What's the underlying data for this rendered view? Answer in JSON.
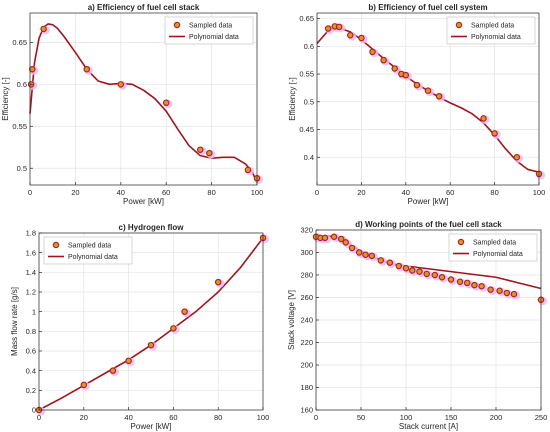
{
  "figure": {
    "background": "#ffffff"
  },
  "style": {
    "sample_marker_fill": "#d69a1f",
    "sample_marker_edge": "#b2182b",
    "sample_marker_shadow": "#f2b6f2",
    "curve_color": "#a0141e",
    "grid_color": "#e3e3e3",
    "axis_color": "#262626"
  },
  "chart_data": [
    {
      "type": "scatter",
      "title": "a) Efficiency of fuel cell stack",
      "xlabel": "Power [kW]",
      "ylabel": "Efficiency [-]",
      "xlim": [
        0,
        100
      ],
      "ylim": [
        0.48,
        0.685
      ],
      "xticks": [
        0,
        20,
        40,
        60,
        80,
        100
      ],
      "yticks": [
        0.5,
        0.55,
        0.6,
        0.65
      ],
      "grid": true,
      "legend": {
        "placement": "top-right",
        "entries": [
          "Sampled data",
          "Polynomial data"
        ]
      },
      "series": [
        {
          "name": "Sampled data",
          "kind": "markers",
          "x": [
            0.5,
            1,
            6,
            25,
            40,
            60,
            75,
            79,
            96,
            100
          ],
          "y": [
            0.6,
            0.618,
            0.666,
            0.618,
            0.6,
            0.578,
            0.522,
            0.518,
            0.498,
            0.488
          ]
        },
        {
          "name": "Polynomial data",
          "kind": "line",
          "x": [
            0,
            2,
            4,
            6,
            8,
            10,
            12,
            15,
            20,
            25,
            30,
            35,
            40,
            45,
            50,
            55,
            60,
            65,
            70,
            75,
            80,
            85,
            90,
            95,
            98,
            100
          ],
          "y": [
            0.565,
            0.626,
            0.655,
            0.668,
            0.672,
            0.671,
            0.667,
            0.657,
            0.638,
            0.618,
            0.604,
            0.6,
            0.601,
            0.6,
            0.593,
            0.583,
            0.568,
            0.547,
            0.527,
            0.515,
            0.512,
            0.513,
            0.513,
            0.505,
            0.495,
            0.483
          ]
        }
      ]
    },
    {
      "type": "scatter",
      "title": "b) Efficiency of fuel cell system",
      "xlabel": "Power [kW]",
      "ylabel": "Efficiency [-]",
      "xlim": [
        0,
        100
      ],
      "ylim": [
        0.35,
        0.66
      ],
      "xticks": [
        0,
        20,
        40,
        60,
        80,
        100
      ],
      "yticks": [
        0.4,
        0.45,
        0.5,
        0.55,
        0.6,
        0.65
      ],
      "grid": true,
      "legend": {
        "placement": "top-right",
        "entries": [
          "Sampled data",
          "Polynomial data"
        ]
      },
      "series": [
        {
          "name": "Sampled data",
          "kind": "markers",
          "x": [
            5,
            8,
            10,
            15,
            20,
            25,
            30,
            35,
            38,
            40,
            45,
            50,
            55,
            75,
            80,
            90,
            100
          ],
          "y": [
            0.632,
            0.636,
            0.635,
            0.62,
            0.615,
            0.59,
            0.575,
            0.56,
            0.55,
            0.548,
            0.53,
            0.52,
            0.51,
            0.47,
            0.443,
            0.4,
            0.37
          ]
        },
        {
          "name": "Polynomial data",
          "kind": "line",
          "x": [
            0,
            5,
            10,
            15,
            20,
            25,
            30,
            35,
            40,
            45,
            50,
            55,
            60,
            65,
            70,
            75,
            80,
            85,
            90,
            95,
            100
          ],
          "y": [
            0.605,
            0.628,
            0.633,
            0.626,
            0.612,
            0.595,
            0.578,
            0.562,
            0.546,
            0.532,
            0.52,
            0.508,
            0.498,
            0.489,
            0.478,
            0.462,
            0.44,
            0.415,
            0.393,
            0.378,
            0.373
          ]
        }
      ]
    },
    {
      "type": "scatter",
      "title": "c) Hydrogen flow",
      "xlabel": "Power [kW]",
      "ylabel": "Mass flow rate [g/s]",
      "xlim": [
        0,
        100
      ],
      "ylim": [
        0,
        1.8
      ],
      "xticks": [
        0,
        20,
        40,
        60,
        80,
        100
      ],
      "yticks": [
        0,
        0.2,
        0.4,
        0.6,
        0.8,
        1,
        1.2,
        1.4,
        1.6,
        1.8
      ],
      "grid": true,
      "legend": {
        "placement": "top-left",
        "entries": [
          "Sampled data",
          "Polynomial data"
        ]
      },
      "series": [
        {
          "name": "Sampled data",
          "kind": "markers",
          "x": [
            0,
            20,
            33,
            40,
            50,
            60,
            65,
            80,
            100
          ],
          "y": [
            0,
            0.255,
            0.4,
            0.5,
            0.66,
            0.83,
            1.0,
            1.3,
            1.75
          ]
        },
        {
          "name": "Polynomial data",
          "kind": "line",
          "x": [
            0,
            10,
            20,
            30,
            40,
            50,
            60,
            70,
            80,
            90,
            100
          ],
          "y": [
            0,
            0.12,
            0.25,
            0.38,
            0.51,
            0.66,
            0.83,
            1.0,
            1.2,
            1.45,
            1.75
          ]
        }
      ]
    },
    {
      "type": "scatter",
      "title": "d) Working points of the fuel cell stack",
      "xlabel": "Stack current [A]",
      "ylabel": "Stack voltage [V]",
      "xlim": [
        0,
        250
      ],
      "ylim": [
        160,
        320
      ],
      "xticks": [
        0,
        50,
        100,
        150,
        200,
        250
      ],
      "yticks": [
        160,
        180,
        200,
        220,
        240,
        260,
        280,
        300,
        320
      ],
      "grid": true,
      "legend": {
        "placement": "top-right",
        "entries": [
          "Sampled data",
          "Polynomial data"
        ]
      },
      "series": [
        {
          "name": "Sampled data",
          "kind": "markers",
          "x": [
            0,
            5,
            10,
            20,
            28,
            33,
            40,
            48,
            55,
            62,
            72,
            82,
            92,
            100,
            107,
            115,
            123,
            132,
            140,
            150,
            160,
            168,
            176,
            184,
            194,
            204,
            212,
            220,
            250
          ],
          "y": [
            314,
            313,
            313,
            314,
            312,
            309,
            304,
            300,
            298,
            297,
            293,
            291,
            288,
            286,
            284,
            283,
            281,
            280,
            278,
            276,
            274,
            273,
            271,
            270,
            267,
            266,
            264,
            263,
            258
          ]
        },
        {
          "name": "Polynomial data",
          "kind": "line",
          "x": [
            0,
            10,
            20,
            30,
            40,
            50,
            60,
            70,
            80,
            90,
            100,
            110,
            120,
            130,
            140,
            150,
            160,
            170,
            180,
            190,
            200,
            210,
            220,
            230,
            240,
            250
          ],
          "y": [
            314,
            315,
            314,
            311,
            306,
            301,
            297,
            294,
            291,
            289,
            288,
            287,
            286,
            285,
            284,
            283,
            282,
            281,
            280,
            279,
            278,
            276,
            274,
            272,
            270,
            268
          ]
        }
      ]
    }
  ]
}
